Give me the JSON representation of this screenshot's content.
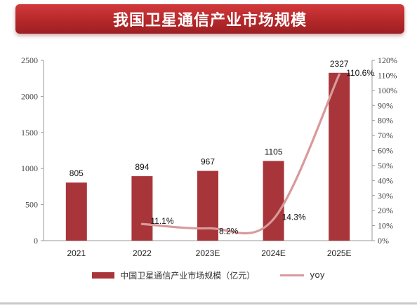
{
  "banner": {
    "title": "我国卫星通信产业市场规模"
  },
  "chart_data": {
    "type": "bar",
    "categories": [
      "2021",
      "2022",
      "2023E",
      "2024E",
      "2025E"
    ],
    "series": [
      {
        "name": "中国卫星通信产业市场规模（亿元）",
        "type": "bar",
        "axis": "left",
        "values": [
          805,
          894,
          967,
          1105,
          2327
        ],
        "labels": [
          "805",
          "894",
          "967",
          "1105",
          "2327"
        ]
      },
      {
        "name": "yoy",
        "type": "line",
        "axis": "right",
        "values": [
          null,
          11.1,
          8.2,
          14.3,
          110.6
        ],
        "labels": [
          "",
          "11.1%",
          "8.2%",
          "14.3%",
          "110.6%"
        ]
      }
    ],
    "y_left": {
      "min": 0,
      "max": 2500,
      "ticks": [
        "0",
        "500",
        "1000",
        "1500",
        "2000",
        "2500"
      ]
    },
    "y_right": {
      "min": 0,
      "max": 120,
      "ticks": [
        "0%",
        "10%",
        "20%",
        "30%",
        "40%",
        "50%",
        "60%",
        "70%",
        "80%",
        "90%",
        "100%",
        "110%",
        "120%"
      ]
    },
    "legend_position": "bottom",
    "grid": false,
    "colors": {
      "bar": "#a8353a",
      "line": "#d89a9a"
    }
  }
}
